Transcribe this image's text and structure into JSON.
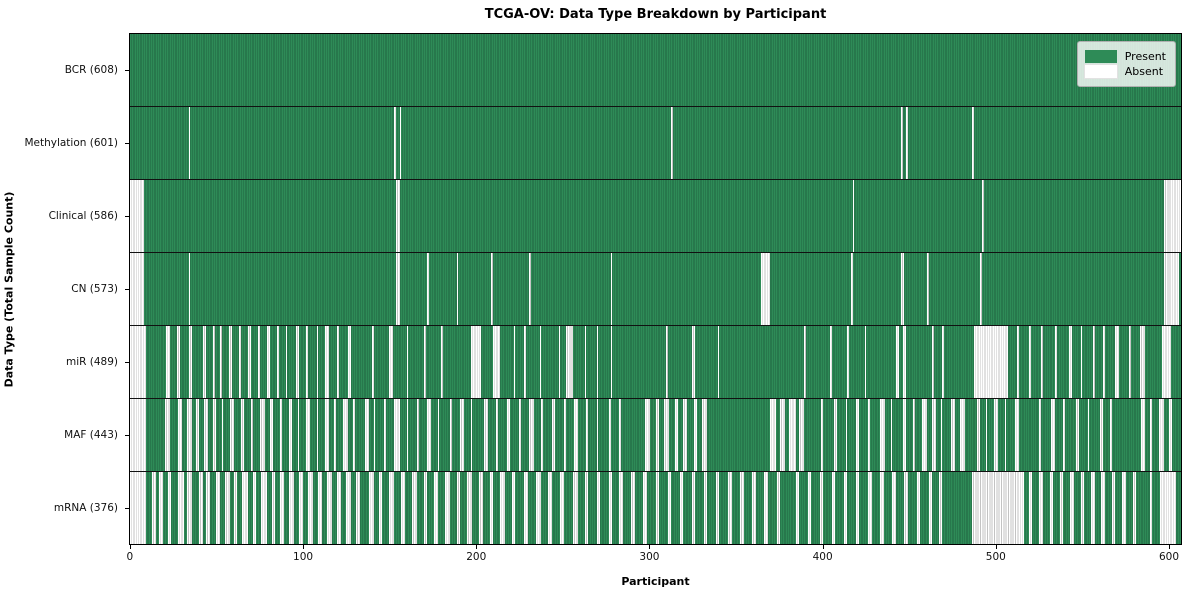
{
  "figure": {
    "title": "TCGA-OV: Data Type Breakdown by Participant",
    "xlabel": "Participant",
    "ylabel": "Data Type (Total Sample Count)"
  },
  "legend": {
    "position": "upper right",
    "items": [
      {
        "label": "Present",
        "color": "#2e8b57"
      },
      {
        "label": "Absent",
        "color": "#ffffff"
      }
    ]
  },
  "chart_data": {
    "type": "heatmap",
    "title": "TCGA-OV: Data Type Breakdown by Participant",
    "xlabel": "Participant",
    "ylabel": "Data Type (Total Sample Count)",
    "x_ticks": [
      0,
      100,
      200,
      300,
      400,
      500,
      600
    ],
    "total_participants": 608,
    "xlim": [
      0,
      608
    ],
    "grid": false,
    "colors": {
      "present": "#2e8b57",
      "present_edge": "#206440",
      "absent": "#ffffff",
      "absent_edge": "#c3c3c3",
      "row_divider": "#111111"
    },
    "rows": [
      {
        "label": "BCR",
        "tick_label": "BCR (608)",
        "present_count": 608,
        "absent_count": 0,
        "absent_runs": []
      },
      {
        "label": "Methylation",
        "tick_label": "Methylation (601)",
        "present_count": 601,
        "absent_count": 7,
        "absent_runs": [
          [
            34,
            1
          ],
          [
            153,
            1
          ],
          [
            156,
            1
          ],
          [
            313,
            1
          ],
          [
            446,
            1
          ],
          [
            449,
            1
          ],
          [
            487,
            1
          ]
        ]
      },
      {
        "label": "Clinical",
        "tick_label": "Clinical (586)",
        "present_count": 586,
        "absent_count": 22,
        "absent_runs": [
          [
            0,
            8
          ],
          [
            154,
            2
          ],
          [
            418,
            1
          ],
          [
            493,
            1
          ],
          [
            598,
            10
          ]
        ]
      },
      {
        "label": "CN",
        "tick_label": "CN (573)",
        "present_count": 573,
        "absent_count": 35,
        "absent_runs": [
          [
            0,
            8
          ],
          [
            34,
            1
          ],
          [
            154,
            2
          ],
          [
            172,
            1
          ],
          [
            189,
            1
          ],
          [
            209,
            1
          ],
          [
            231,
            1
          ],
          [
            278,
            1
          ],
          [
            365,
            5
          ],
          [
            417,
            1
          ],
          [
            446,
            2
          ],
          [
            461,
            1
          ],
          [
            492,
            1
          ],
          [
            598,
            9
          ]
        ]
      },
      {
        "label": "miR",
        "tick_label": "miR (489)",
        "present_count": 489,
        "absent_count": 119,
        "absent_runs": [
          [
            0,
            9
          ],
          [
            21,
            2
          ],
          [
            27,
            2
          ],
          [
            34,
            2
          ],
          [
            42,
            2
          ],
          [
            48,
            1
          ],
          [
            52,
            1
          ],
          [
            57,
            2
          ],
          [
            63,
            1
          ],
          [
            68,
            2
          ],
          [
            74,
            1
          ],
          [
            79,
            2
          ],
          [
            85,
            1
          ],
          [
            90,
            1
          ],
          [
            96,
            2
          ],
          [
            102,
            1
          ],
          [
            108,
            1
          ],
          [
            113,
            2
          ],
          [
            120,
            1
          ],
          [
            126,
            2
          ],
          [
            140,
            1
          ],
          [
            150,
            2
          ],
          [
            160,
            1
          ],
          [
            170,
            1
          ],
          [
            180,
            1
          ],
          [
            197,
            6
          ],
          [
            210,
            4
          ],
          [
            222,
            1
          ],
          [
            228,
            1
          ],
          [
            237,
            1
          ],
          [
            248,
            1
          ],
          [
            252,
            4
          ],
          [
            263,
            1
          ],
          [
            270,
            1
          ],
          [
            278,
            1
          ],
          [
            310,
            1
          ],
          [
            325,
            2
          ],
          [
            340,
            1
          ],
          [
            390,
            1
          ],
          [
            405,
            1
          ],
          [
            415,
            1
          ],
          [
            425,
            1
          ],
          [
            443,
            2
          ],
          [
            447,
            2
          ],
          [
            464,
            1
          ],
          [
            470,
            1
          ],
          [
            488,
            20
          ],
          [
            513,
            1
          ],
          [
            520,
            1
          ],
          [
            527,
            1
          ],
          [
            535,
            1
          ],
          [
            543,
            2
          ],
          [
            550,
            1
          ],
          [
            557,
            1
          ],
          [
            563,
            1
          ],
          [
            570,
            2
          ],
          [
            578,
            1
          ],
          [
            584,
            3
          ],
          [
            597,
            5
          ]
        ]
      },
      {
        "label": "MAF",
        "tick_label": "MAF (443)",
        "present_count": 443,
        "absent_count": 165,
        "absent_runs": [
          [
            0,
            9
          ],
          [
            20,
            3
          ],
          [
            28,
            2
          ],
          [
            33,
            3
          ],
          [
            38,
            2
          ],
          [
            43,
            2
          ],
          [
            48,
            2
          ],
          [
            53,
            1
          ],
          [
            58,
            2
          ],
          [
            64,
            2
          ],
          [
            70,
            1
          ],
          [
            75,
            3
          ],
          [
            81,
            2
          ],
          [
            87,
            1
          ],
          [
            92,
            2
          ],
          [
            97,
            1
          ],
          [
            102,
            2
          ],
          [
            108,
            1
          ],
          [
            113,
            2
          ],
          [
            118,
            1
          ],
          [
            123,
            3
          ],
          [
            129,
            1
          ],
          [
            136,
            2
          ],
          [
            141,
            1
          ],
          [
            147,
            1
          ],
          [
            153,
            3
          ],
          [
            160,
            1
          ],
          [
            166,
            1
          ],
          [
            172,
            2
          ],
          [
            178,
            1
          ],
          [
            185,
            1
          ],
          [
            191,
            2
          ],
          [
            197,
            1
          ],
          [
            205,
            2
          ],
          [
            212,
            1
          ],
          [
            218,
            2
          ],
          [
            225,
            1
          ],
          [
            231,
            3
          ],
          [
            238,
            1
          ],
          [
            244,
            2
          ],
          [
            251,
            1
          ],
          [
            257,
            2
          ],
          [
            264,
            1
          ],
          [
            270,
            1
          ],
          [
            277,
            1
          ],
          [
            283,
            1
          ],
          [
            298,
            3
          ],
          [
            304,
            2
          ],
          [
            309,
            3
          ],
          [
            315,
            2
          ],
          [
            320,
            2
          ],
          [
            326,
            2
          ],
          [
            331,
            3
          ],
          [
            370,
            4
          ],
          [
            376,
            3
          ],
          [
            381,
            4
          ],
          [
            387,
            3
          ],
          [
            400,
            1
          ],
          [
            407,
            2
          ],
          [
            414,
            1
          ],
          [
            420,
            2
          ],
          [
            427,
            1
          ],
          [
            434,
            3
          ],
          [
            440,
            1
          ],
          [
            447,
            2
          ],
          [
            453,
            1
          ],
          [
            458,
            3
          ],
          [
            464,
            2
          ],
          [
            469,
            1
          ],
          [
            475,
            2
          ],
          [
            480,
            3
          ],
          [
            490,
            2
          ],
          [
            495,
            1
          ],
          [
            500,
            2
          ],
          [
            506,
            1
          ],
          [
            512,
            2
          ],
          [
            526,
            1
          ],
          [
            533,
            2
          ],
          [
            540,
            1
          ],
          [
            547,
            2
          ],
          [
            554,
            1
          ],
          [
            561,
            2
          ],
          [
            567,
            1
          ],
          [
            585,
            2
          ],
          [
            590,
            1
          ],
          [
            595,
            3
          ],
          [
            601,
            2
          ]
        ]
      },
      {
        "label": "mRNA",
        "tick_label": "mRNA (376)",
        "present_count": 376,
        "absent_count": 232,
        "absent_runs": [
          [
            0,
            9
          ],
          [
            13,
            2
          ],
          [
            17,
            2
          ],
          [
            22,
            2
          ],
          [
            28,
            3
          ],
          [
            33,
            3
          ],
          [
            40,
            2
          ],
          [
            44,
            2
          ],
          [
            50,
            2
          ],
          [
            55,
            3
          ],
          [
            60,
            2
          ],
          [
            65,
            3
          ],
          [
            71,
            2
          ],
          [
            76,
            3
          ],
          [
            82,
            2
          ],
          [
            87,
            2
          ],
          [
            92,
            3
          ],
          [
            98,
            2
          ],
          [
            103,
            3
          ],
          [
            109,
            2
          ],
          [
            114,
            3
          ],
          [
            120,
            2
          ],
          [
            125,
            3
          ],
          [
            131,
            2
          ],
          [
            138,
            3
          ],
          [
            144,
            2
          ],
          [
            150,
            3
          ],
          [
            157,
            2
          ],
          [
            163,
            3
          ],
          [
            170,
            2
          ],
          [
            176,
            2
          ],
          [
            182,
            3
          ],
          [
            189,
            2
          ],
          [
            195,
            3
          ],
          [
            202,
            2
          ],
          [
            208,
            2
          ],
          [
            214,
            3
          ],
          [
            221,
            2
          ],
          [
            228,
            2
          ],
          [
            235,
            3
          ],
          [
            242,
            2
          ],
          [
            249,
            2
          ],
          [
            256,
            3
          ],
          [
            263,
            2
          ],
          [
            270,
            2
          ],
          [
            277,
            2
          ],
          [
            283,
            2
          ],
          [
            290,
            2
          ],
          [
            297,
            2
          ],
          [
            304,
            2
          ],
          [
            311,
            2
          ],
          [
            318,
            2
          ],
          [
            325,
            2
          ],
          [
            332,
            2
          ],
          [
            339,
            2
          ],
          [
            346,
            2
          ],
          [
            353,
            2
          ],
          [
            360,
            2
          ],
          [
            367,
            2
          ],
          [
            374,
            2
          ],
          [
            385,
            2
          ],
          [
            392,
            2
          ],
          [
            399,
            2
          ],
          [
            406,
            2
          ],
          [
            413,
            2
          ],
          [
            420,
            2
          ],
          [
            427,
            2
          ],
          [
            434,
            2
          ],
          [
            441,
            2
          ],
          [
            448,
            2
          ],
          [
            455,
            2
          ],
          [
            462,
            2
          ],
          [
            468,
            2
          ],
          [
            487,
            30
          ],
          [
            520,
            2
          ],
          [
            526,
            2
          ],
          [
            532,
            2
          ],
          [
            538,
            2
          ],
          [
            544,
            2
          ],
          [
            550,
            2
          ],
          [
            556,
            2
          ],
          [
            562,
            2
          ],
          [
            568,
            2
          ],
          [
            574,
            2
          ],
          [
            580,
            2
          ],
          [
            590,
            1
          ],
          [
            596,
            9
          ]
        ]
      }
    ]
  }
}
